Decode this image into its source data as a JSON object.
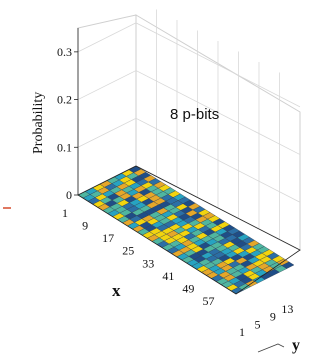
{
  "chart_data": {
    "type": "bar3d",
    "annotation": "8 p-bits",
    "xlabel": "x",
    "ylabel": "y",
    "zlabel": "Probability",
    "z_ticks": [
      0,
      0.1,
      0.2,
      0.3
    ],
    "z_tick_labels": [
      "0",
      "0.1",
      "0.2",
      "0.3"
    ],
    "zlim": [
      0,
      0.35
    ],
    "x_ticks": [
      "1",
      "9",
      "17",
      "25",
      "33",
      "41",
      "49",
      "57"
    ],
    "y_ticks": [
      "1",
      "5",
      "9",
      "13"
    ],
    "x_range": [
      1,
      64
    ],
    "y_range": [
      1,
      16
    ],
    "grid": true,
    "surface_value_approx": 0.001,
    "colors": {
      "palette": [
        "#f2d40f",
        "#e5a72a",
        "#4fb6a0",
        "#27a3c1",
        "#2b6fa6",
        "#1f4d87"
      ],
      "grid_line": "#d8d8d8",
      "axis_line": "#222222",
      "tick_text": "#111111"
    }
  },
  "decorations": {
    "left_dash_color": "#d64b2c",
    "bottom_fragment_color": "#444444"
  }
}
